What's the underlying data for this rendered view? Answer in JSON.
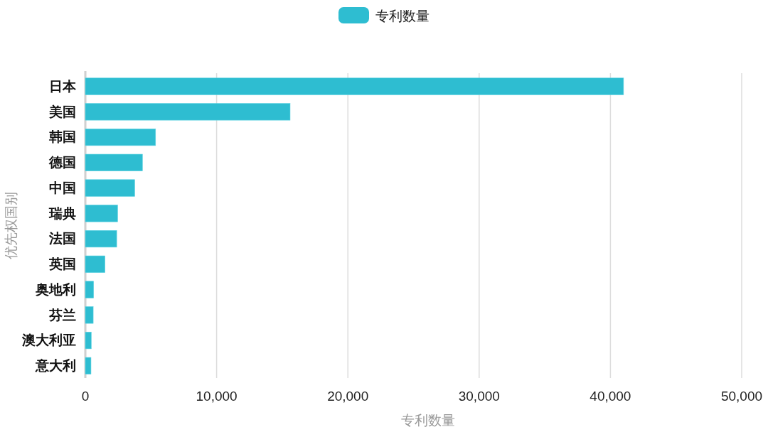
{
  "chart_data": {
    "type": "bar",
    "orientation": "horizontal",
    "categories": [
      "日本",
      "美国",
      "韩国",
      "德国",
      "中国",
      "瑞典",
      "法国",
      "英国",
      "奥地利",
      "芬兰",
      "澳大利亚",
      "意大利"
    ],
    "series": [
      {
        "name": "专利数量",
        "color": "#2ebdd1",
        "values": [
          41000,
          15600,
          5350,
          4350,
          3760,
          2460,
          2390,
          1500,
          630,
          600,
          450,
          430
        ]
      }
    ],
    "xlabel": "专利数量",
    "ylabel": "优先权国别",
    "xlim": [
      0,
      50000
    ],
    "xticks": [
      {
        "value": 0,
        "label": "0"
      },
      {
        "value": 10000,
        "label": "10,000"
      },
      {
        "value": 20000,
        "label": "20,000"
      },
      {
        "value": 30000,
        "label": "30,000"
      },
      {
        "value": 40000,
        "label": "40,000"
      },
      {
        "value": 50000,
        "label": "50,000"
      }
    ],
    "grid": "x",
    "legend": "top"
  }
}
